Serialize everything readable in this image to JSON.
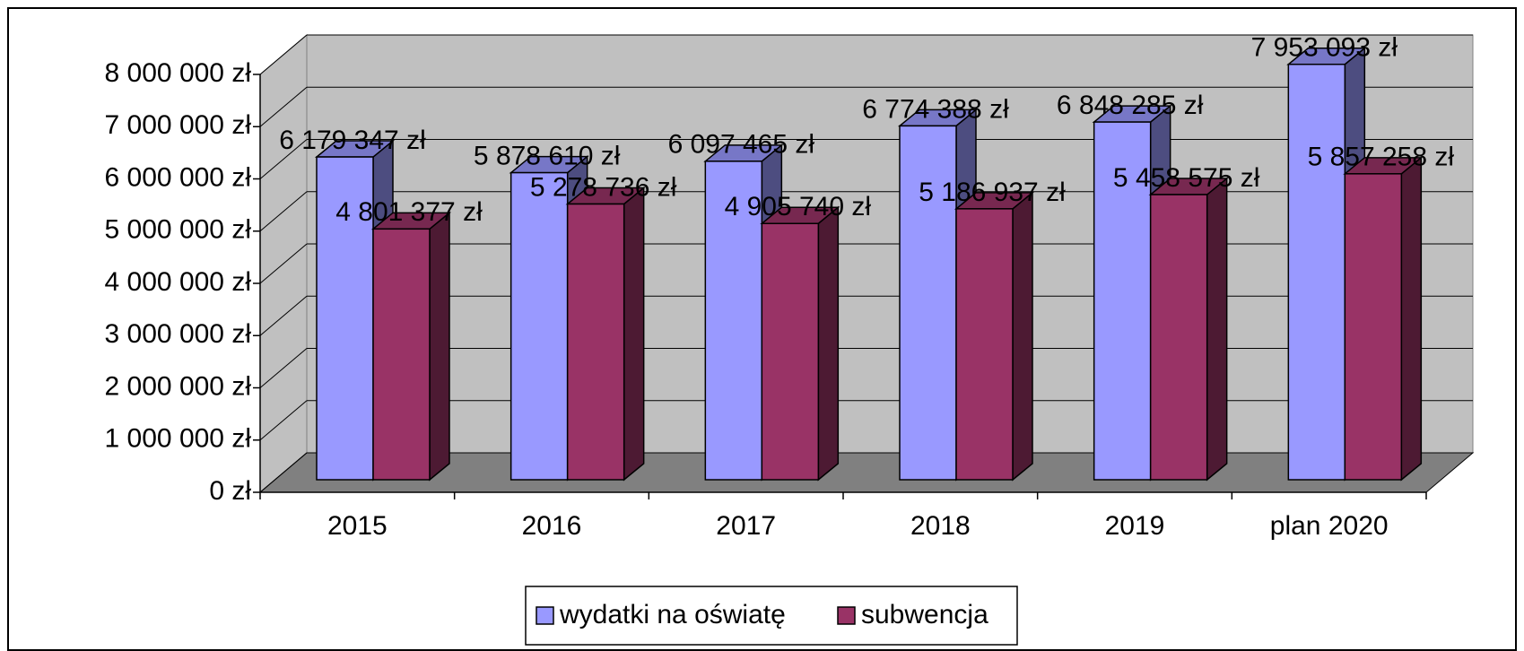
{
  "chart_data": {
    "type": "bar3d",
    "categories": [
      "2015",
      "2016",
      "2017",
      "2018",
      "2019",
      "plan 2020"
    ],
    "series": [
      {
        "name": "wydatki na oświatę",
        "color": "#9999ff",
        "values": [
          6179347,
          5878610,
          6097465,
          6774388,
          6848285,
          7953093
        ],
        "value_labels": [
          "6 179 347 zł",
          "5 878 610 zł",
          "6 097 465 zł",
          "6 774 388 zł",
          "6 848 285 zł",
          "7 953 093 zł"
        ]
      },
      {
        "name": "subwencja",
        "color": "#993366",
        "values": [
          4801377,
          5278736,
          4905740,
          5186937,
          5458575,
          5857258
        ],
        "value_labels": [
          "4 801 377 zł",
          "5 278 736 zł",
          "4 905 740 zł",
          "5 186 937 zł",
          "5 458 575 zł",
          "5 857 258 zł"
        ]
      }
    ],
    "ylim": [
      0,
      8000000
    ],
    "yticks": [
      {
        "value": 0,
        "label": "0 zł"
      },
      {
        "value": 1000000,
        "label": "1 000 000 zł"
      },
      {
        "value": 2000000,
        "label": "2 000 000 zł"
      },
      {
        "value": 3000000,
        "label": "3 000 000 zł"
      },
      {
        "value": 4000000,
        "label": "4 000 000 zł"
      },
      {
        "value": 5000000,
        "label": "5 000 000 zł"
      },
      {
        "value": 6000000,
        "label": "6 000 000 zł"
      },
      {
        "value": 7000000,
        "label": "7 000 000 zł"
      },
      {
        "value": 8000000,
        "label": "8 000 000 zł"
      }
    ],
    "grid": true,
    "legend": "bottom"
  }
}
